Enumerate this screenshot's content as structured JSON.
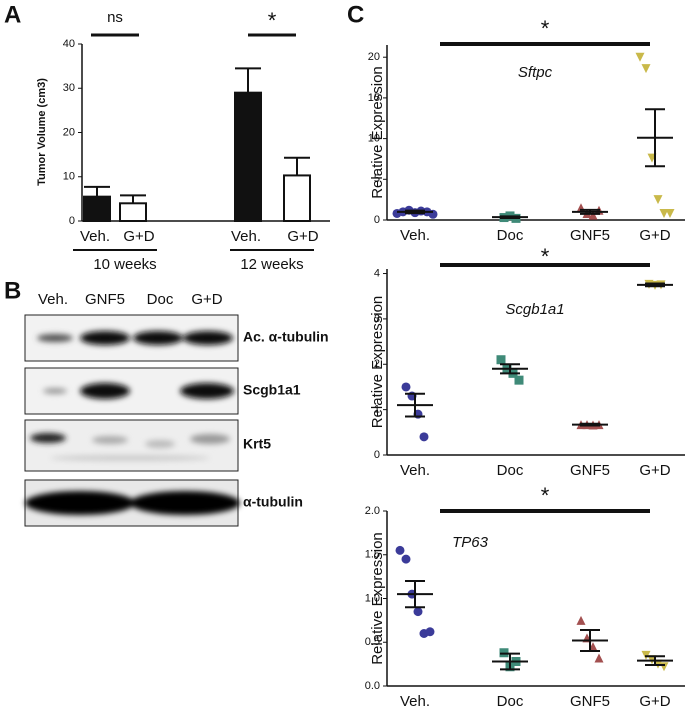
{
  "panel_labels": [
    "A",
    "B",
    "C"
  ],
  "blot": {
    "lanes": [
      "Veh.",
      "GNF5",
      "Doc",
      "G+D"
    ],
    "rows": [
      "Ac. α-tubulin",
      "Scgb1a1",
      "Krt5",
      "α-tubulin"
    ]
  },
  "chart_data": [
    {
      "type": "bar",
      "y_label": "Tumor Volume (cm3)",
      "categories": [
        "10 weeks",
        "12 weeks"
      ],
      "series": [
        {
          "name": "Veh.",
          "color": "#111111",
          "values": [
            5.5,
            29
          ],
          "errors": [
            2.2,
            5.5
          ]
        },
        {
          "name": "G+D",
          "color": "#ffffff",
          "values": [
            4,
            10.3
          ],
          "errors": [
            1.8,
            4
          ]
        }
      ],
      "annotations": [
        "ns",
        "*"
      ],
      "ylim": [
        0,
        40
      ],
      "yticks": [
        0,
        10,
        20,
        30,
        40
      ]
    },
    {
      "type": "dot",
      "title": "Sftpc",
      "y_label": "Relative Expression",
      "annotation": "*",
      "ylim": [
        0,
        21.5
      ],
      "yticks": [
        0,
        5,
        10,
        15,
        20
      ],
      "groups": [
        {
          "name": "Veh.",
          "color": "#3b3b99",
          "values": [
            0.8,
            1.0,
            1.2,
            0.9,
            1.1,
            1.0,
            0.7
          ],
          "mean": 1.0,
          "sem": 0.15
        },
        {
          "name": "Doc",
          "color": "#3f8a78",
          "values": [
            0.3,
            0.5,
            0.2
          ],
          "mean": 0.35,
          "sem": 0.1
        },
        {
          "name": "GNF5",
          "color": "#a35050",
          "values": [
            1.5,
            0.8,
            0.6,
            1.2
          ],
          "mean": 1.0,
          "sem": 0.25
        },
        {
          "name": "G+D",
          "color": "#c9b94a",
          "values": [
            20,
            18.6,
            7.6,
            2.5,
            0.8,
            0.8
          ],
          "mean": 10.1,
          "sem": 3.5
        }
      ]
    },
    {
      "type": "dot",
      "title": "Scgb1a1",
      "y_label": "Relative Expression",
      "annotation": "*",
      "ylim": [
        0,
        4.1
      ],
      "yticks": [
        0,
        1,
        2,
        3,
        4
      ],
      "groups": [
        {
          "name": "Veh.",
          "color": "#3b3b99",
          "values": [
            1.5,
            1.3,
            0.9,
            0.4
          ],
          "mean": 1.1,
          "sem": 0.25
        },
        {
          "name": "Doc",
          "color": "#3f8a78",
          "values": [
            2.1,
            1.9,
            1.8,
            1.65
          ],
          "mean": 1.9,
          "sem": 0.1
        },
        {
          "name": "GNF5",
          "color": "#a35050",
          "values": [
            0.67,
            0.67,
            0.66,
            0.67
          ],
          "mean": 0.67,
          "sem": 0.02
        },
        {
          "name": "G+D",
          "color": "#c9b94a",
          "values": [
            3.76,
            3.74,
            3.75
          ],
          "mean": 3.75,
          "sem": 0.03
        }
      ]
    },
    {
      "type": "dot",
      "title": "TP63",
      "y_label": "Relative Expression",
      "annotation": "*",
      "ylim": [
        0,
        2.0
      ],
      "yticks": [
        {
          "value": 0,
          "label": "0.0"
        },
        {
          "value": 0.5,
          "label": "0.5"
        },
        {
          "value": 1,
          "label": "1.0"
        },
        {
          "value": 1.5,
          "label": "1.5"
        },
        {
          "value": 2,
          "label": "2.0"
        }
      ],
      "groups": [
        {
          "name": "Veh.",
          "color": "#3b3b99",
          "values": [
            1.55,
            1.45,
            1.05,
            0.85,
            0.6,
            0.62
          ],
          "mean": 1.05,
          "sem": 0.15
        },
        {
          "name": "Doc",
          "color": "#3f8a78",
          "values": [
            0.38,
            0.22,
            0.28
          ],
          "mean": 0.28,
          "sem": 0.09
        },
        {
          "name": "GNF5",
          "color": "#a35050",
          "values": [
            0.75,
            0.55,
            0.45,
            0.32
          ],
          "mean": 0.52,
          "sem": 0.12
        },
        {
          "name": "G+D",
          "color": "#c9b94a",
          "values": [
            0.35,
            0.3,
            0.25,
            0.22
          ],
          "mean": 0.29,
          "sem": 0.05
        }
      ]
    }
  ]
}
